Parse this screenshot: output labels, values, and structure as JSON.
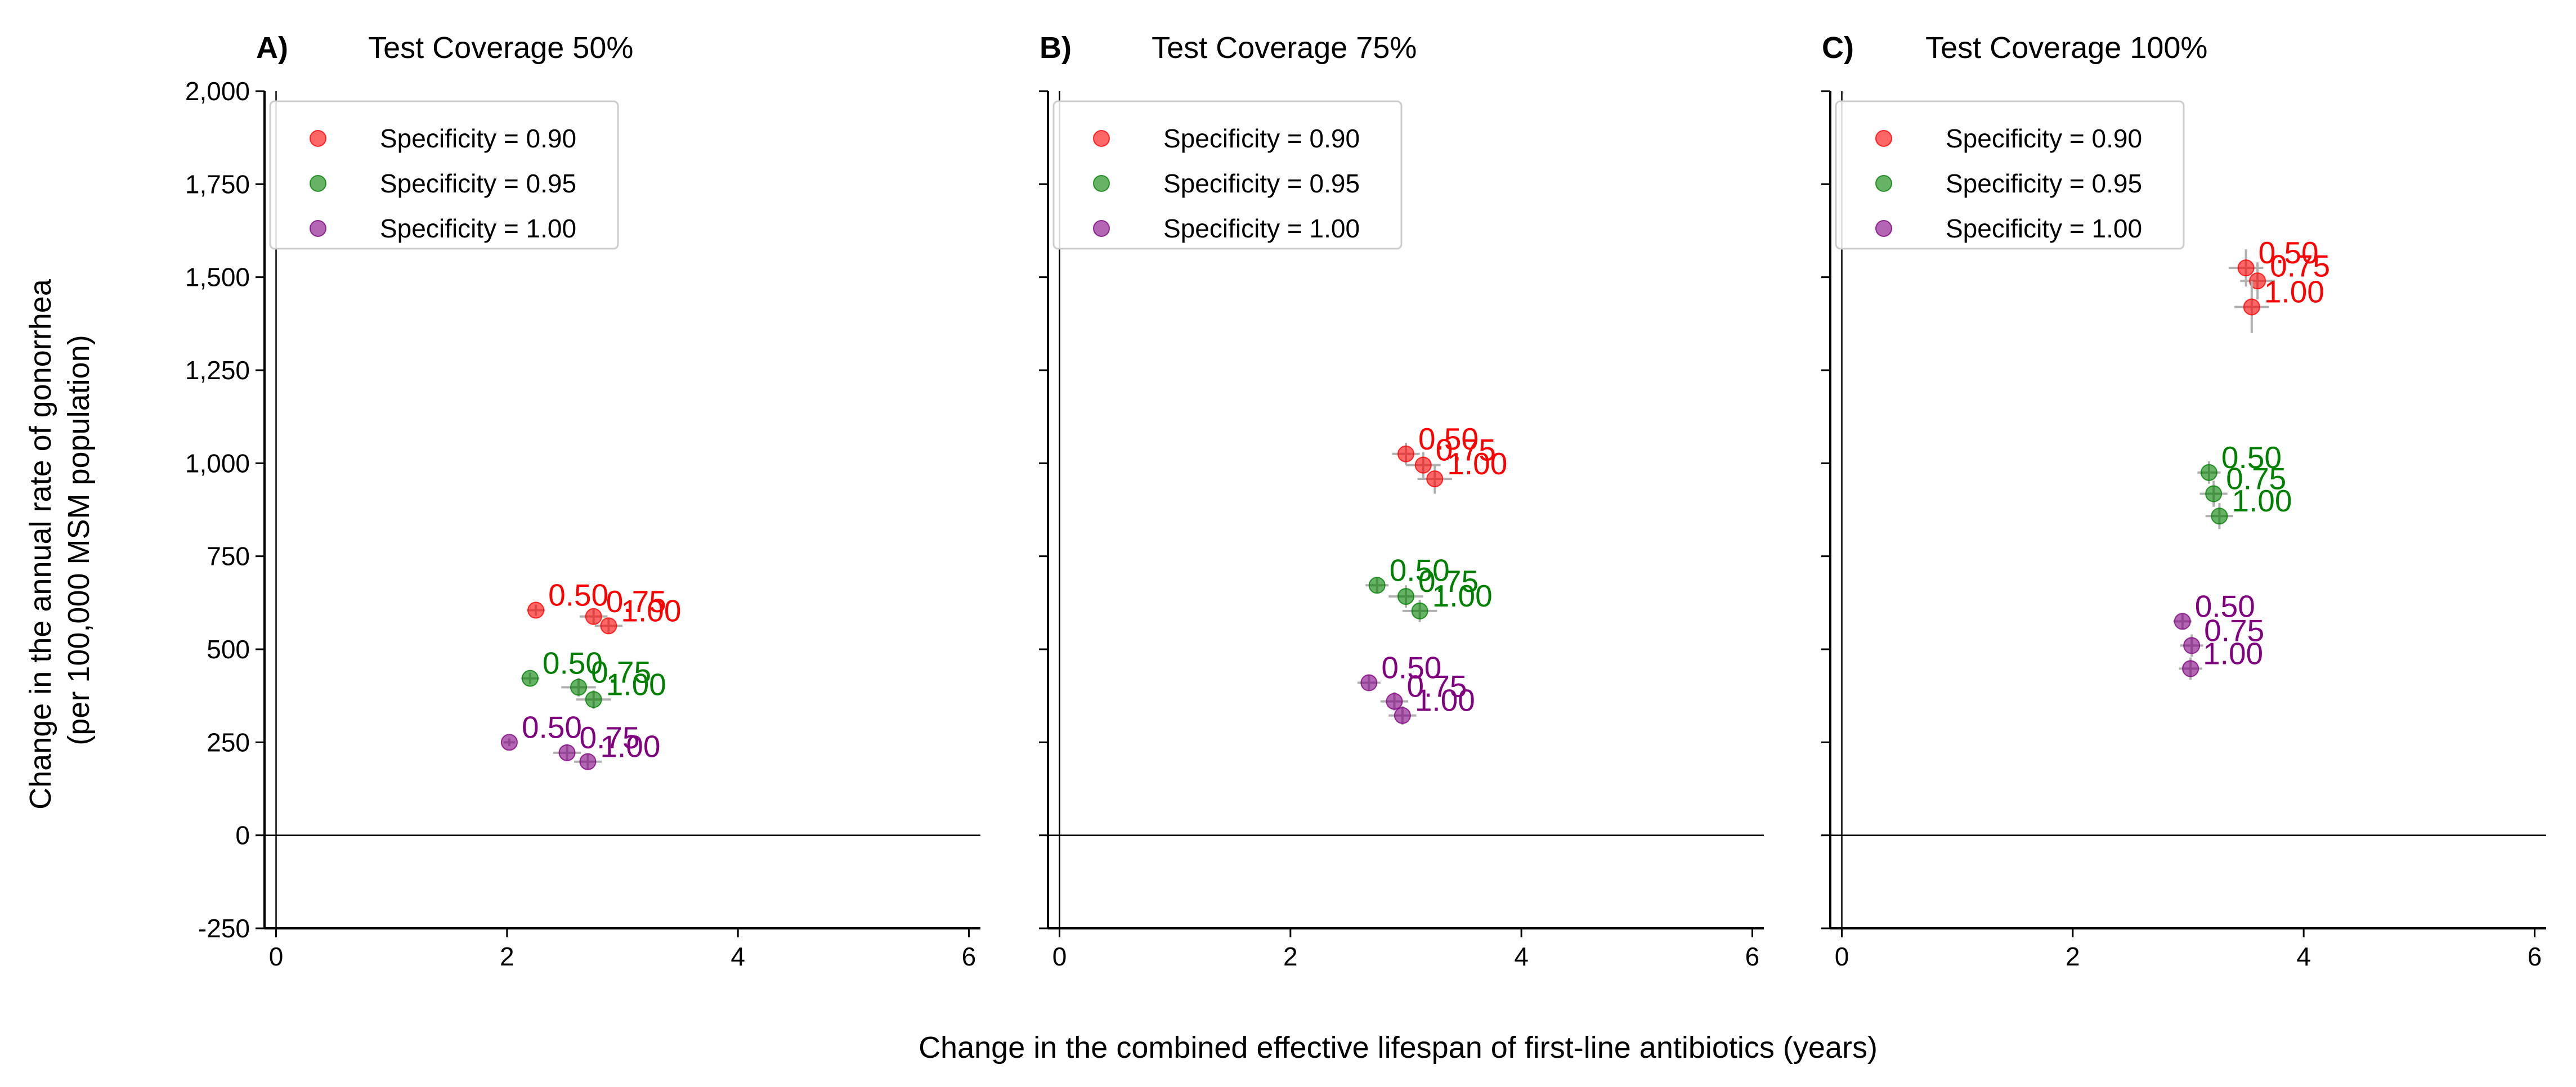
{
  "figure": {
    "xlabel": "Change in the combined effective lifespan of first-line antibiotics (years)",
    "ylabel_line1": "Change in the annual rate of gonorrhea",
    "ylabel_line2": "(per 100,000 MSM population)"
  },
  "chart_data": {
    "type": "scatter",
    "xlim": [
      -0.1,
      6.1
    ],
    "ylim": [
      -250,
      2000
    ],
    "xticks": [
      0,
      2,
      4,
      6
    ],
    "yticks": [
      -250,
      0,
      250,
      500,
      750,
      1000,
      1250,
      1500,
      1750,
      2000
    ],
    "ytick_labels": [
      "-250",
      "0",
      "250",
      "500",
      "750",
      "1,000",
      "1,250",
      "1,500",
      "1,750",
      "2,000"
    ],
    "grid": false,
    "legend_position": "upper left",
    "reference_lines": {
      "x": 0,
      "y": 0
    },
    "series_styles": [
      {
        "name": "Specificity = 0.90",
        "color": "#ff0000"
      },
      {
        "name": "Specificity = 0.95",
        "color": "#008000"
      },
      {
        "name": "Specificity = 1.00",
        "color": "#800080"
      }
    ],
    "panels": [
      {
        "letter": "A)",
        "title": "Test Coverage 50%",
        "series": [
          {
            "name": "Specificity = 0.90",
            "points": [
              {
                "label": "0.50",
                "x": 2.25,
                "y": 605,
                "xerr": 0.08,
                "yerr": 15
              },
              {
                "label": "0.75",
                "x": 2.75,
                "y": 588,
                "xerr": 0.12,
                "yerr": 20
              },
              {
                "label": "1.00",
                "x": 2.88,
                "y": 563,
                "xerr": 0.12,
                "yerr": 20
              }
            ]
          },
          {
            "name": "Specificity = 0.95",
            "points": [
              {
                "label": "0.50",
                "x": 2.2,
                "y": 422,
                "xerr": 0.08,
                "yerr": 15
              },
              {
                "label": "0.75",
                "x": 2.62,
                "y": 398,
                "xerr": 0.15,
                "yerr": 25
              },
              {
                "label": "1.00",
                "x": 2.75,
                "y": 365,
                "xerr": 0.15,
                "yerr": 25
              }
            ]
          },
          {
            "name": "Specificity = 1.00",
            "points": [
              {
                "label": "0.50",
                "x": 2.02,
                "y": 250,
                "xerr": 0.05,
                "yerr": 10
              },
              {
                "label": "0.75",
                "x": 2.52,
                "y": 222,
                "xerr": 0.12,
                "yerr": 20
              },
              {
                "label": "1.00",
                "x": 2.7,
                "y": 198,
                "xerr": 0.12,
                "yerr": 20
              }
            ]
          }
        ]
      },
      {
        "letter": "B)",
        "title": "Test Coverage 75%",
        "series": [
          {
            "name": "Specificity = 0.90",
            "points": [
              {
                "label": "0.50",
                "x": 3.0,
                "y": 1025,
                "xerr": 0.12,
                "yerr": 30
              },
              {
                "label": "0.75",
                "x": 3.15,
                "y": 995,
                "xerr": 0.15,
                "yerr": 35
              },
              {
                "label": "1.00",
                "x": 3.25,
                "y": 958,
                "xerr": 0.15,
                "yerr": 40
              }
            ]
          },
          {
            "name": "Specificity = 0.95",
            "points": [
              {
                "label": "0.50",
                "x": 2.75,
                "y": 672,
                "xerr": 0.1,
                "yerr": 20
              },
              {
                "label": "0.75",
                "x": 3.0,
                "y": 642,
                "xerr": 0.15,
                "yerr": 30
              },
              {
                "label": "1.00",
                "x": 3.12,
                "y": 603,
                "xerr": 0.15,
                "yerr": 30
              }
            ]
          },
          {
            "name": "Specificity = 1.00",
            "points": [
              {
                "label": "0.50",
                "x": 2.68,
                "y": 410,
                "xerr": 0.1,
                "yerr": 20
              },
              {
                "label": "0.75",
                "x": 2.9,
                "y": 360,
                "xerr": 0.12,
                "yerr": 25
              },
              {
                "label": "1.00",
                "x": 2.97,
                "y": 322,
                "xerr": 0.12,
                "yerr": 25
              }
            ]
          }
        ]
      },
      {
        "letter": "C)",
        "title": "Test Coverage 100%",
        "series": [
          {
            "name": "Specificity = 0.90",
            "points": [
              {
                "label": "0.50",
                "x": 3.5,
                "y": 1525,
                "xerr": 0.15,
                "yerr": 50
              },
              {
                "label": "0.75",
                "x": 3.6,
                "y": 1490,
                "xerr": 0.15,
                "yerr": 50
              },
              {
                "label": "1.00",
                "x": 3.55,
                "y": 1420,
                "xerr": 0.15,
                "yerr": 70
              }
            ]
          },
          {
            "name": "Specificity = 0.95",
            "points": [
              {
                "label": "0.50",
                "x": 3.18,
                "y": 975,
                "xerr": 0.1,
                "yerr": 30
              },
              {
                "label": "0.75",
                "x": 3.22,
                "y": 918,
                "xerr": 0.12,
                "yerr": 35
              },
              {
                "label": "1.00",
                "x": 3.27,
                "y": 858,
                "xerr": 0.12,
                "yerr": 35
              }
            ]
          },
          {
            "name": "Specificity = 1.00",
            "points": [
              {
                "label": "0.50",
                "x": 2.95,
                "y": 575,
                "xerr": 0.08,
                "yerr": 20
              },
              {
                "label": "0.75",
                "x": 3.03,
                "y": 510,
                "xerr": 0.1,
                "yerr": 30
              },
              {
                "label": "1.00",
                "x": 3.02,
                "y": 448,
                "xerr": 0.1,
                "yerr": 30
              }
            ]
          }
        ]
      }
    ]
  }
}
